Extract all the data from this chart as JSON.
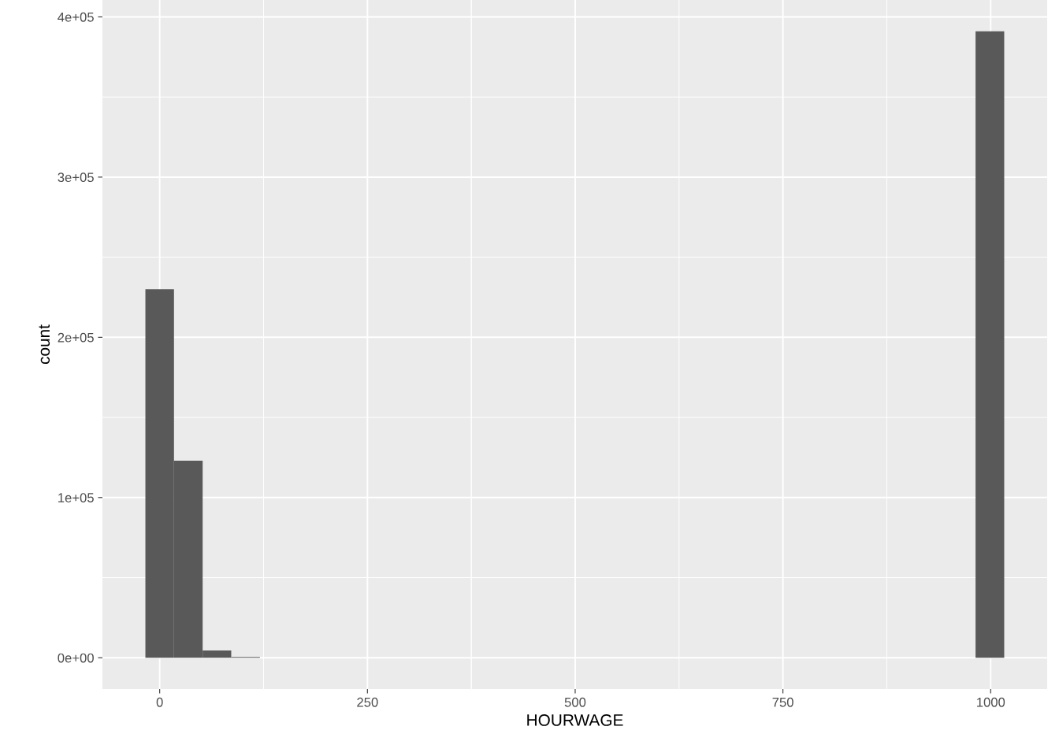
{
  "chart_data": {
    "type": "histogram",
    "xlabel": "HOURWAGE",
    "ylabel": "count",
    "color": "#595959",
    "bins": [
      -17.2,
      17.2,
      51.7,
      86.1,
      120.6,
      155.0,
      189.5,
      223.9,
      258.4,
      292.8,
      327.3,
      361.7,
      396.2,
      430.6,
      465.1,
      499.5,
      534.0,
      568.4,
      602.9,
      637.3,
      671.8,
      706.2,
      740.7,
      775.1,
      809.6,
      844.0,
      878.5,
      912.9,
      947.4,
      981.8,
      1016.3
    ],
    "values": [
      230000,
      123000,
      4500,
      500,
      0,
      0,
      0,
      0,
      0,
      0,
      0,
      0,
      0,
      0,
      0,
      0,
      0,
      0,
      0,
      0,
      0,
      0,
      0,
      0,
      0,
      0,
      0,
      0,
      0,
      391000
    ],
    "xlim": [
      -68.9,
      1068
    ],
    "xticks": [
      0,
      250,
      500,
      750,
      1000
    ],
    "ylim": [
      -19550,
      410550
    ],
    "yticks": [
      {
        "value": 0,
        "label": "0e+00"
      },
      {
        "value": 100000,
        "label": "1e+05"
      },
      {
        "value": 200000,
        "label": "2e+05"
      },
      {
        "value": 300000,
        "label": "3e+05"
      },
      {
        "value": 400000,
        "label": "4e+05"
      }
    ],
    "grid": true
  }
}
